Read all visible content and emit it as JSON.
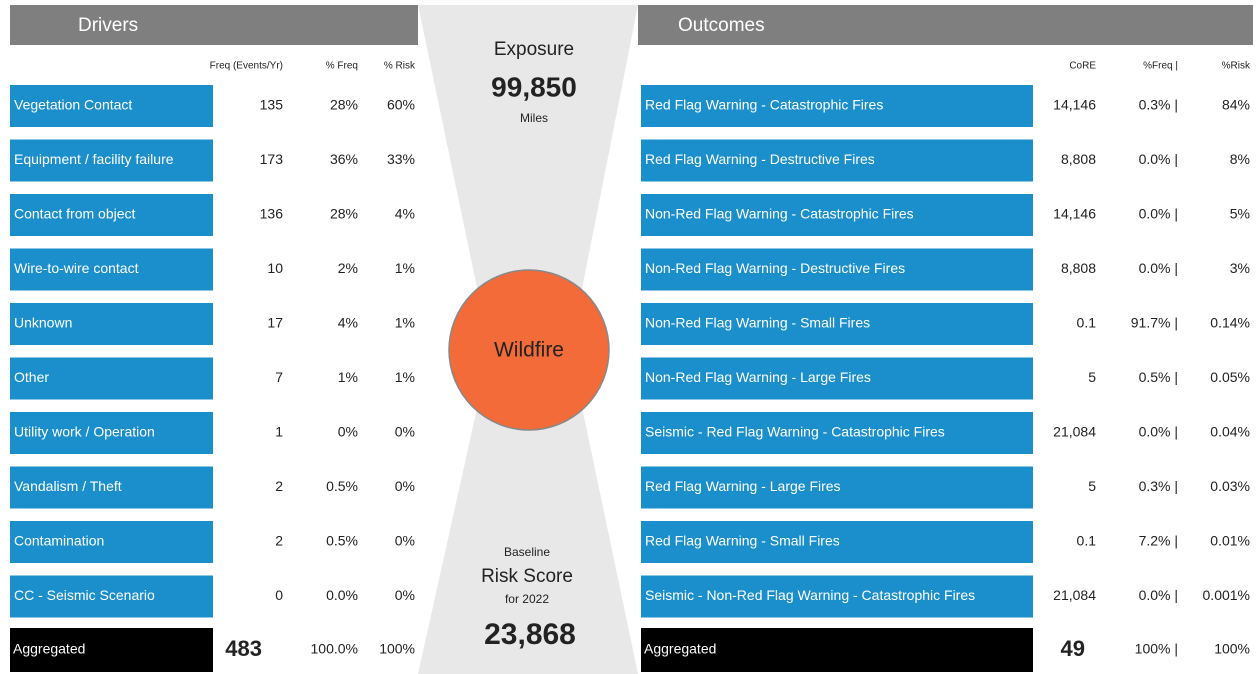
{
  "drivers": {
    "title": "Drivers",
    "columns": [
      "Freq (Events/Yr)",
      "% Freq",
      "% Risk"
    ],
    "rows": [
      {
        "label": "Vegetation Contact",
        "freq": "135",
        "pct_freq": "28%",
        "pct_risk": "60%"
      },
      {
        "label": "Equipment / facility failure",
        "freq": "173",
        "pct_freq": "36%",
        "pct_risk": "33%"
      },
      {
        "label": "Contact from object",
        "freq": "136",
        "pct_freq": "28%",
        "pct_risk": "4%"
      },
      {
        "label": "Wire-to-wire contact",
        "freq": "10",
        "pct_freq": "2%",
        "pct_risk": "1%"
      },
      {
        "label": "Unknown",
        "freq": "17",
        "pct_freq": "4%",
        "pct_risk": "1%"
      },
      {
        "label": "Other",
        "freq": "7",
        "pct_freq": "1%",
        "pct_risk": "1%"
      },
      {
        "label": "Utility work / Operation",
        "freq": "1",
        "pct_freq": "0%",
        "pct_risk": "0%"
      },
      {
        "label": "Vandalism / Theft",
        "freq": "2",
        "pct_freq": "0.5%",
        "pct_risk": "0%"
      },
      {
        "label": "Contamination",
        "freq": "2",
        "pct_freq": "0.5%",
        "pct_risk": "0%"
      },
      {
        "label": "CC - Seismic Scenario",
        "freq": "0",
        "pct_freq": "0.0%",
        "pct_risk": "0%"
      }
    ],
    "aggregated": {
      "label": "Aggregated",
      "freq": "483",
      "pct_freq": "100.0%",
      "pct_risk": "100%"
    }
  },
  "center": {
    "exposure_title": "Exposure",
    "exposure_value": "99,850",
    "exposure_unit": "Miles",
    "event": "Wildfire",
    "baseline": "Baseline",
    "risk_score": "Risk Score",
    "year": "for 2022",
    "risk_value": "23,868"
  },
  "outcomes": {
    "title": "Outcomes",
    "columns": [
      "CoRE",
      "%Freq |",
      "%Risk"
    ],
    "rows": [
      {
        "label": "Red Flag Warning - Catastrophic Fires",
        "core": "14,146",
        "pct_freq": "0.3% |",
        "pct_risk": "84%"
      },
      {
        "label": "Red Flag Warning - Destructive Fires",
        "core": "8,808",
        "pct_freq": "0.0% |",
        "pct_risk": "8%"
      },
      {
        "label": "Non-Red Flag Warning - Catastrophic Fires",
        "core": "14,146",
        "pct_freq": "0.0% |",
        "pct_risk": "5%"
      },
      {
        "label": "Non-Red Flag Warning - Destructive Fires",
        "core": "8,808",
        "pct_freq": "0.0% |",
        "pct_risk": "3%"
      },
      {
        "label": "Non-Red Flag Warning - Small Fires",
        "core": "0.1",
        "pct_freq": "91.7% |",
        "pct_risk": "0.14%"
      },
      {
        "label": "Non-Red Flag Warning - Large Fires",
        "core": "5",
        "pct_freq": "0.5% |",
        "pct_risk": "0.05%"
      },
      {
        "label": "Seismic - Red Flag Warning - Catastrophic Fires",
        "core": "21,084",
        "pct_freq": "0.0% |",
        "pct_risk": "0.04%"
      },
      {
        "label": "Red Flag Warning - Large Fires",
        "core": "5",
        "pct_freq": "0.3% |",
        "pct_risk": "0.03%"
      },
      {
        "label": "Red Flag Warning - Small Fires",
        "core": "0.1",
        "pct_freq": "7.2% |",
        "pct_risk": "0.01%"
      },
      {
        "label": "Seismic - Non-Red Flag Warning - Catastrophic Fires",
        "core": "21,084",
        "pct_freq": "0.0% |",
        "pct_risk": "0.001%"
      }
    ],
    "aggregated": {
      "label": "Aggregated",
      "core": "49",
      "pct_freq": "100% |",
      "pct_risk": "100%"
    }
  }
}
